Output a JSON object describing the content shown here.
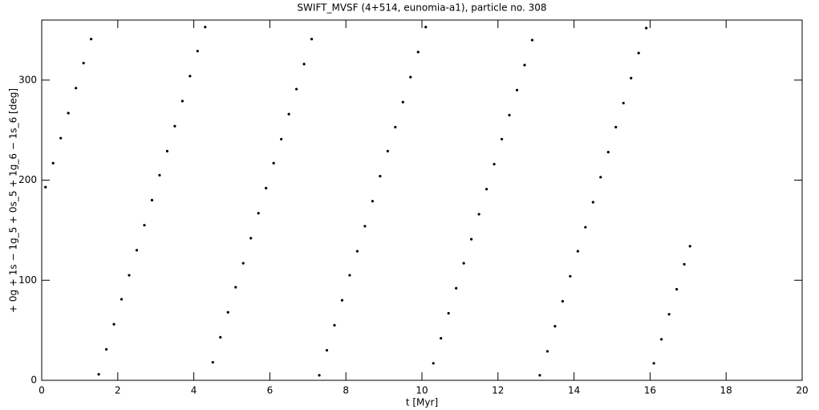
{
  "chart_data": {
    "type": "scatter",
    "title": "SWIFT_MVSF (4+514, eunomia-a1), particle no. 308",
    "x_label": "t [Myr]",
    "y_label": "+ 0g + 1s − 1g_5 + 0s_5 + 1g_6 − 1s_6 [deg]",
    "color": "#000000",
    "x": [
      0.1,
      0.3,
      0.5,
      0.7,
      0.9,
      1.1,
      1.3,
      1.5,
      1.7,
      1.9,
      2.1,
      2.3,
      2.5,
      2.7,
      2.9,
      3.1,
      3.3,
      3.5,
      3.7,
      3.9,
      4.1,
      4.3,
      4.5,
      4.7,
      4.9,
      5.1,
      5.3,
      5.5,
      5.7,
      5.9,
      6.1,
      6.3,
      6.5,
      6.7,
      6.9,
      7.1,
      7.3,
      7.5,
      7.7,
      7.9,
      8.1,
      8.3,
      8.5,
      8.7,
      8.9,
      9.1,
      9.3,
      9.5,
      9.7,
      9.9,
      10.1,
      10.3,
      10.5,
      10.7,
      10.9,
      11.1,
      11.3,
      11.5,
      11.7,
      11.9,
      12.1,
      12.3,
      12.5,
      12.7,
      12.9,
      13.1,
      13.3,
      13.5,
      13.7,
      13.9,
      14.1,
      14.3,
      14.5,
      14.7,
      14.9,
      15.1,
      15.3,
      15.5,
      15.7,
      15.9,
      16.1,
      16.3,
      16.5,
      16.7,
      16.9,
      17.05
    ],
    "values": [
      193,
      217,
      242,
      267,
      292,
      317,
      341,
      6,
      31,
      56,
      81,
      105,
      130,
      155,
      180,
      205,
      229,
      254,
      279,
      304,
      329,
      353,
      18,
      43,
      68,
      93,
      117,
      142,
      167,
      192,
      217,
      241,
      266,
      291,
      316,
      341,
      5,
      30,
      55,
      80,
      105,
      129,
      154,
      179,
      204,
      229,
      253,
      278,
      303,
      328,
      353,
      17,
      42,
      67,
      92,
      117,
      141,
      166,
      191,
      216,
      241,
      265,
      290,
      315,
      340,
      5,
      29,
      54,
      79,
      104,
      129,
      153,
      178,
      203,
      228,
      253,
      277,
      302,
      327,
      352,
      17,
      41,
      66,
      91,
      116,
      134
    ],
    "xlim": [
      0,
      20
    ],
    "xticks": [
      0,
      2,
      4,
      6,
      8,
      10,
      12,
      14,
      16,
      18,
      20
    ],
    "ylim": [
      0,
      360
    ],
    "yticks": [
      0,
      100,
      200,
      300
    ]
  }
}
